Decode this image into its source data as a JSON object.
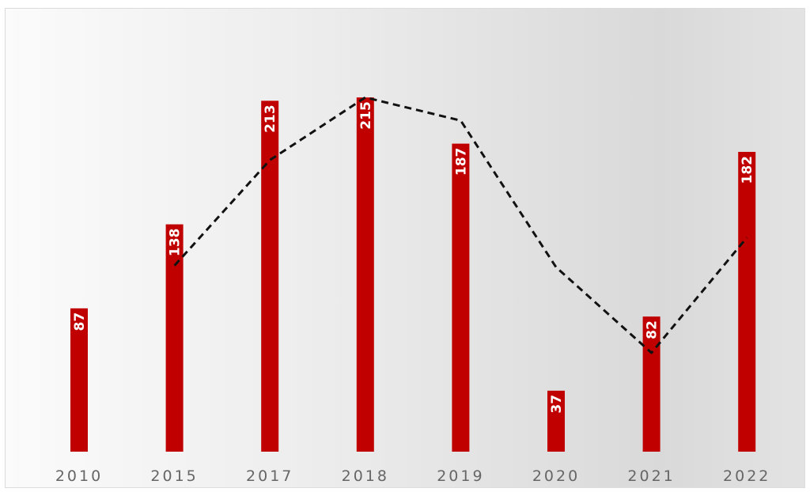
{
  "chart_data": {
    "type": "bar",
    "categories": [
      "2010",
      "2015",
      "2017",
      "2018",
      "2019",
      "2020",
      "2021",
      "2022"
    ],
    "values": [
      87,
      138,
      213,
      215,
      187,
      37,
      82,
      182
    ],
    "trend_line": {
      "style": "dashed",
      "color": "#111111",
      "values": [
        null,
        113,
        177,
        215,
        201,
        112,
        60,
        130
      ]
    },
    "bar_color": "#c00000",
    "ylim": [
      0,
      218
    ],
    "grid": false,
    "legend": "none",
    "title": "",
    "xlabel": "",
    "ylabel": ""
  }
}
